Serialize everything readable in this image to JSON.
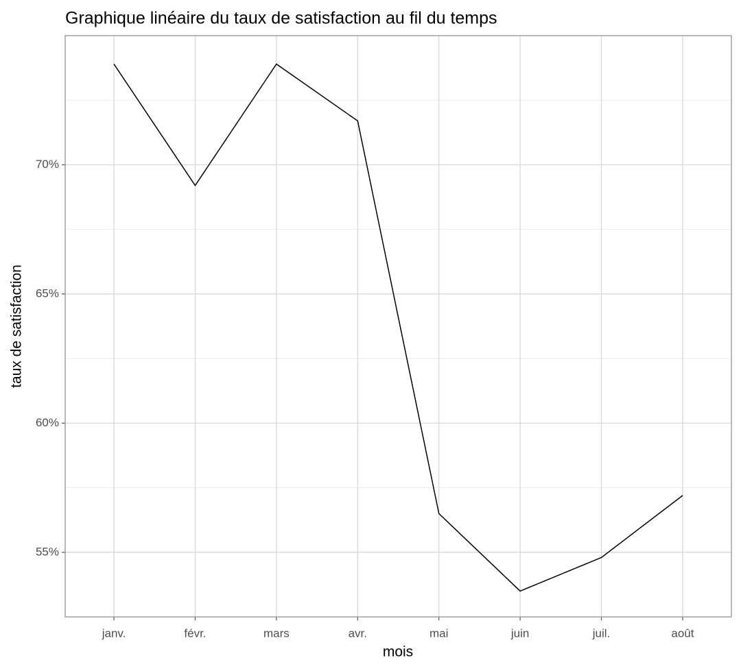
{
  "chart_data": {
    "type": "line",
    "title": "Graphique linéaire du taux de satisfaction au fil du temps",
    "x_label": "mois",
    "y_label": "taux de satisfaction",
    "categories": [
      "janv.",
      "févr.",
      "mars",
      "avr.",
      "mai",
      "juin",
      "juil.",
      "août"
    ],
    "values": [
      73.9,
      69.2,
      73.9,
      71.7,
      56.5,
      53.5,
      54.8,
      57.2
    ],
    "color": "#000000",
    "ylim": [
      52.5,
      75.0
    ],
    "yticks": [
      {
        "value": 55,
        "label": "55%"
      },
      {
        "value": 60,
        "label": "60%"
      },
      {
        "value": 65,
        "label": "65%"
      },
      {
        "value": 70,
        "label": "70%"
      }
    ],
    "grid": true
  }
}
